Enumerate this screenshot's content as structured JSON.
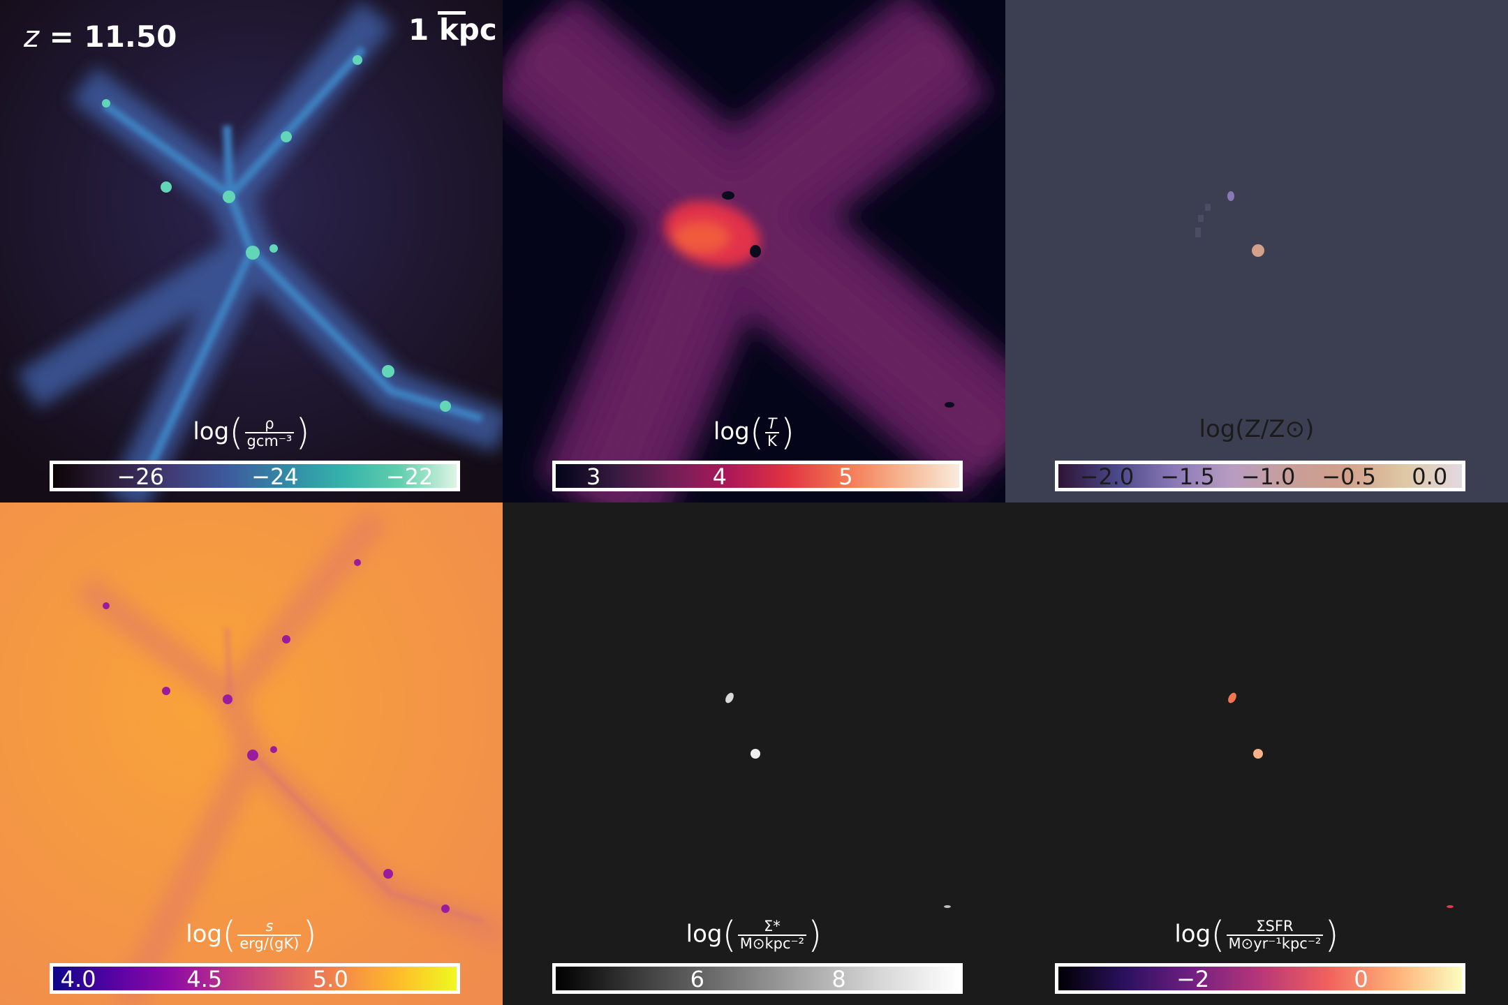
{
  "overlay": {
    "redshift_symbol": "z",
    "redshift_value": "= 11.50",
    "scale_label": "1 kpc"
  },
  "panels": {
    "density": {
      "label_prefix": "log",
      "label_num": "ρ",
      "label_den": "gcm⁻³",
      "ticks": [
        "−26",
        "−24",
        "−22"
      ],
      "tick_values": [
        -26,
        -24,
        -22
      ],
      "range": [
        -27.3,
        -21.3
      ],
      "colormap": "mako"
    },
    "temperature": {
      "label_prefix": "log",
      "label_num": "T",
      "label_den": "K",
      "ticks": [
        "3",
        "4",
        "5"
      ],
      "tick_values": [
        3,
        4,
        5
      ],
      "range": [
        2.7,
        5.9
      ],
      "colormap": "rocket"
    },
    "metallicity": {
      "label": "log(Z/Z⊙)",
      "ticks": [
        "−2.0",
        "−1.5",
        "−1.0",
        "−0.5",
        "0.0"
      ],
      "tick_values": [
        -2.0,
        -1.5,
        -1.0,
        -0.5,
        0.0
      ],
      "range": [
        -2.3,
        0.2
      ],
      "colormap": "twilight"
    },
    "entropy": {
      "label_prefix": "log",
      "label_num": "s",
      "label_den": "erg/(gK)",
      "ticks": [
        "4.0",
        "4.5",
        "5.0"
      ],
      "tick_values": [
        4.0,
        4.5,
        5.0
      ],
      "range": [
        3.9,
        5.5
      ],
      "colormap": "plasma"
    },
    "stellar_surface_density": {
      "label_prefix": "log",
      "label_num": "Σ*",
      "label_den": "M⊙kpc⁻²",
      "ticks": [
        "6",
        "8"
      ],
      "tick_values": [
        6,
        8
      ],
      "range": [
        4.0,
        9.7
      ],
      "colormap": "gray"
    },
    "sfr_surface_density": {
      "label_prefix": "log",
      "label_num": "ΣSFR",
      "label_den": "M⊙yr⁻¹kpc⁻²",
      "ticks": [
        "−2",
        "0"
      ],
      "tick_values": [
        -2,
        0
      ],
      "range": [
        -3.6,
        1.2
      ],
      "colormap": "magma"
    }
  },
  "colors": {
    "empty_background": "#1b1b1b",
    "metallicity_background": "#3b3f51",
    "colorbar_border": "#ffffff"
  }
}
